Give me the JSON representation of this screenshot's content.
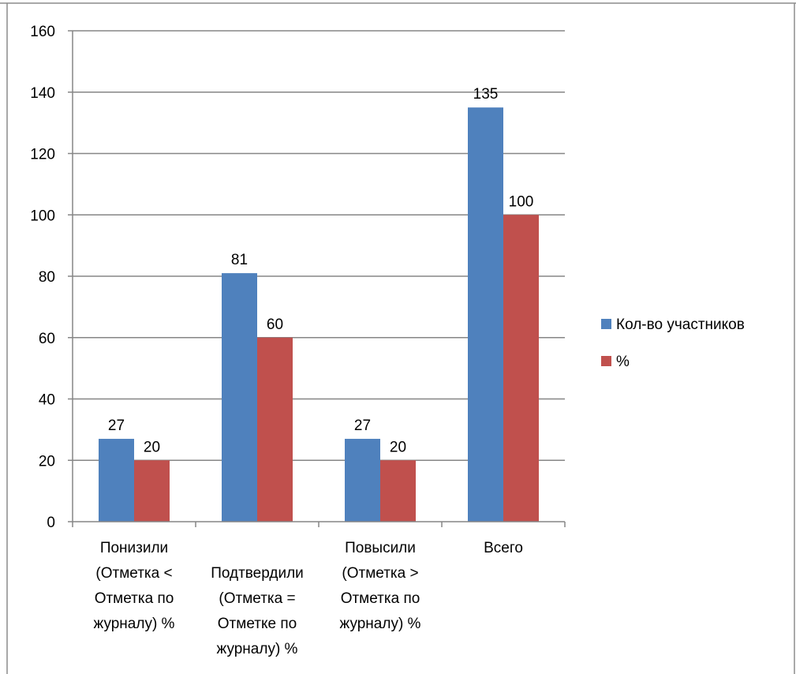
{
  "chart_data": {
    "type": "bar",
    "title": "",
    "xlabel": "",
    "ylabel": "",
    "ylim": [
      0,
      160
    ],
    "yticks": [
      0,
      20,
      40,
      60,
      80,
      100,
      120,
      140,
      160
    ],
    "grid": true,
    "legend_position": "right",
    "categories": [
      [
        "Понизили",
        "(Отметка <",
        "Отметка по",
        "журналу) %"
      ],
      [
        "",
        "Подтвердили",
        "(Отметка =",
        "Отметке по",
        "журналу) %"
      ],
      [
        "Повысили",
        "(Отметка >",
        "Отметка по",
        "журналу) %"
      ],
      [
        "Всего"
      ]
    ],
    "series": [
      {
        "name": "Кол-во участников",
        "color": "#4F81BD",
        "values": [
          27,
          81,
          27,
          135
        ]
      },
      {
        "name": "%",
        "color": "#C0504D",
        "values": [
          20,
          60,
          20,
          100
        ]
      }
    ],
    "data_labels": true
  }
}
